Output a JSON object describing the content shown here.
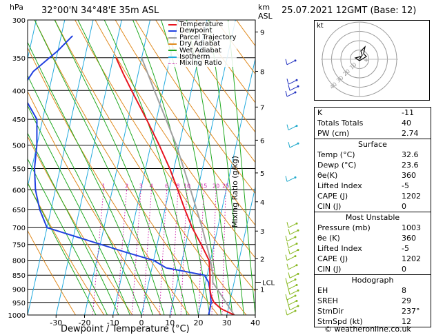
{
  "header": {
    "hpa_label": "hPa",
    "location": "32°00'N  34°48'E  35m  ASL",
    "km_label": "km",
    "asl_label": "ASL",
    "datetime": "25.07.2021  12GMT  (Base: 12)"
  },
  "footer": {
    "xlabel": "Dewpoint / Temperature (°C)",
    "copyright": "© weatheronline.co.uk"
  },
  "mixing_ratio_label": "Mixing Ratio (g/kg)",
  "chart_data": {
    "type": "line",
    "pressure_levels": [
      300,
      350,
      400,
      450,
      500,
      550,
      600,
      650,
      700,
      750,
      800,
      850,
      900,
      950,
      1000
    ],
    "x_ticks": [
      -30,
      -20,
      -10,
      0,
      10,
      20,
      30,
      40
    ],
    "xlim": [
      -40,
      40
    ],
    "ylim": [
      1000,
      300
    ],
    "km_ticks": [
      {
        "label": "9",
        "p": 315
      },
      {
        "label": "8",
        "p": 370
      },
      {
        "label": "7",
        "p": 428
      },
      {
        "label": "6",
        "p": 490
      },
      {
        "label": "5",
        "p": 560
      },
      {
        "label": "4",
        "p": 630
      },
      {
        "label": "3",
        "p": 710
      },
      {
        "label": "2",
        "p": 795
      },
      {
        "label": "1",
        "p": 900
      }
    ],
    "lcl": {
      "label": "LCL",
      "p": 875
    },
    "mixing_ratio_labels": [
      "1",
      "2",
      "3",
      "4",
      "6",
      "8",
      "10",
      "15",
      "20",
      "25"
    ],
    "mixing_ratio_values": [
      1,
      2,
      3,
      4,
      6,
      8,
      10,
      15,
      20,
      25
    ],
    "legend": [
      {
        "name": "Temperature",
        "color": "#e8141e",
        "style": "solid"
      },
      {
        "name": "Dewpoint",
        "color": "#2040e0",
        "style": "solid"
      },
      {
        "name": "Parcel Trajectory",
        "color": "#a0a0a0",
        "style": "solid"
      },
      {
        "name": "Dry Adiabat",
        "color": "#e08a1e",
        "style": "solid"
      },
      {
        "name": "Wet Adiabat",
        "color": "#22aa22",
        "style": "solid"
      },
      {
        "name": "Isotherm",
        "color": "#22aadd",
        "style": "solid"
      },
      {
        "name": "Mixing Ratio",
        "color": "#cc22aa",
        "style": "dotted"
      }
    ],
    "temperature": {
      "color": "#e8141e",
      "points": [
        [
          1000,
          32.6
        ],
        [
          975,
          27.5
        ],
        [
          950,
          24.5
        ],
        [
          925,
          23
        ],
        [
          900,
          22
        ],
        [
          850,
          21
        ],
        [
          800,
          19.5
        ],
        [
          750,
          15.5
        ],
        [
          700,
          11
        ],
        [
          650,
          7
        ],
        [
          600,
          3
        ],
        [
          550,
          -1.5
        ],
        [
          500,
          -7
        ],
        [
          450,
          -13.5
        ],
        [
          400,
          -21
        ],
        [
          375,
          -25
        ],
        [
          350,
          -29
        ]
      ]
    },
    "dewpoint": {
      "color": "#2040e0",
      "points": [
        [
          1000,
          23.6
        ],
        [
          950,
          23.5
        ],
        [
          900,
          22
        ],
        [
          875,
          21
        ],
        [
          850,
          19
        ],
        [
          825,
          5
        ],
        [
          800,
          0
        ],
        [
          775,
          -10
        ],
        [
          700,
          -40
        ],
        [
          650,
          -44
        ],
        [
          600,
          -47
        ],
        [
          550,
          -49
        ],
        [
          500,
          -50
        ],
        [
          450,
          -52
        ],
        [
          400,
          -60
        ],
        [
          370,
          -57
        ],
        [
          340,
          -50
        ],
        [
          320,
          -46
        ]
      ]
    },
    "parcel": {
      "color": "#a0a0a0",
      "points": [
        [
          1000,
          32.6
        ],
        [
          875,
          22.5
        ],
        [
          850,
          22
        ],
        [
          800,
          20
        ],
        [
          700,
          14.5
        ],
        [
          600,
          7.5
        ],
        [
          500,
          -1
        ],
        [
          400,
          -13
        ],
        [
          350,
          -20
        ]
      ]
    },
    "wind_barb_color": "#88b820"
  },
  "stats": {
    "top": [
      {
        "label": "K",
        "value": "-11"
      },
      {
        "label": "Totals Totals",
        "value": "40"
      },
      {
        "label": "PW (cm)",
        "value": "2.74"
      }
    ],
    "surface": {
      "title": "Surface",
      "rows": [
        {
          "label": "Temp (°C)",
          "value": "32.6"
        },
        {
          "label": "Dewp (°C)",
          "value": "23.6"
        },
        {
          "label": "θe(K)",
          "value": "360"
        },
        {
          "label": "Lifted Index",
          "value": "-5"
        },
        {
          "label": "CAPE (J)",
          "value": "1202"
        },
        {
          "label": "CIN (J)",
          "value": "0"
        }
      ]
    },
    "most_unstable": {
      "title": "Most Unstable",
      "rows": [
        {
          "label": "Pressure (mb)",
          "value": "1003"
        },
        {
          "label": "θe (K)",
          "value": "360"
        },
        {
          "label": "Lifted Index",
          "value": "-5"
        },
        {
          "label": "CAPE (J)",
          "value": "1202"
        },
        {
          "label": "CIN (J)",
          "value": "0"
        }
      ]
    },
    "hodograph": {
      "title": "Hodograph",
      "rows": [
        {
          "label": "EH",
          "value": "8"
        },
        {
          "label": "SREH",
          "value": "29"
        },
        {
          "label": "StmDir",
          "value": "237°"
        },
        {
          "label": "StmSpd (kt)",
          "value": "12"
        }
      ]
    }
  },
  "hodo": {
    "kt_label": "kt",
    "ring_labels": [
      "10",
      "20",
      "30",
      "40"
    ],
    "ring_values": [
      10,
      20,
      30,
      40
    ]
  }
}
